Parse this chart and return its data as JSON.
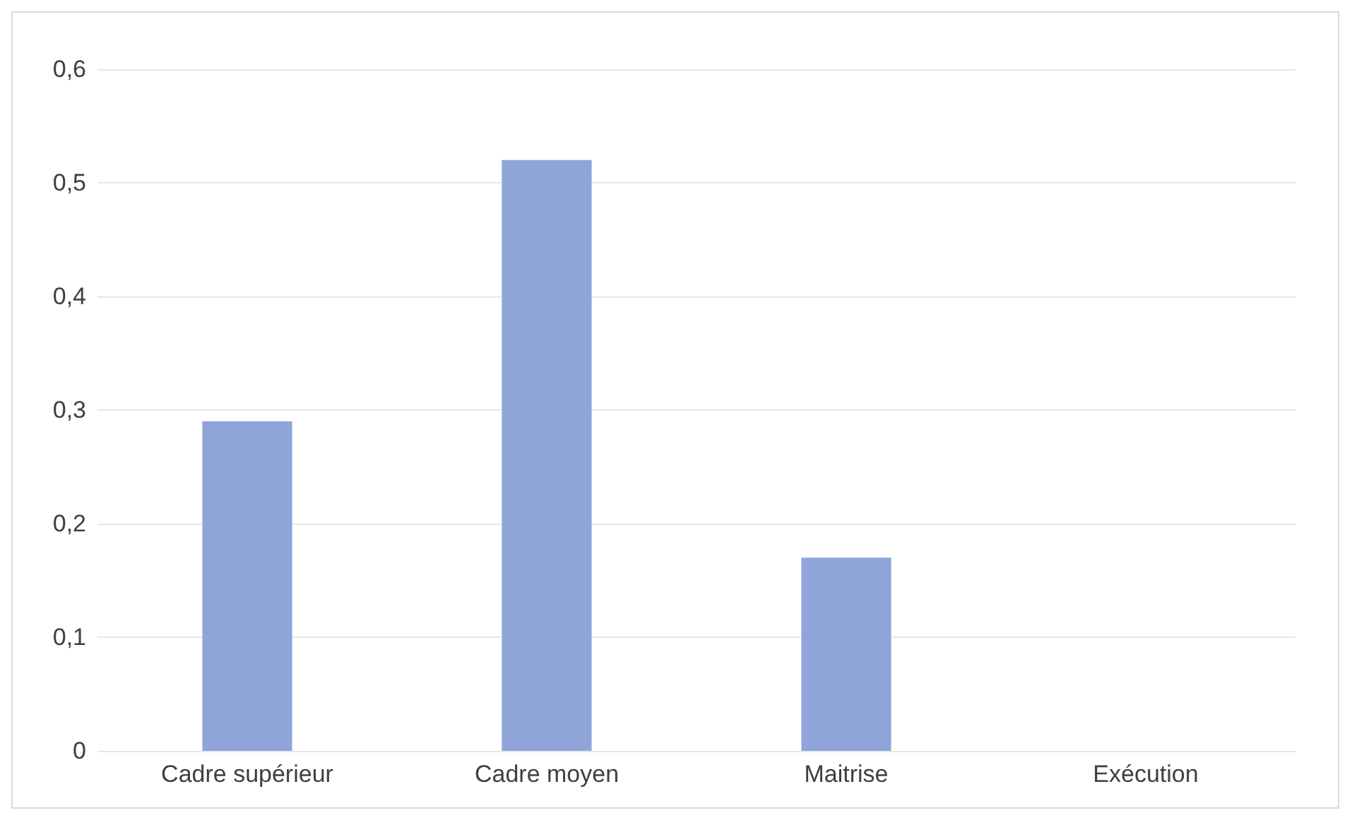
{
  "chart_data": {
    "type": "bar",
    "categories": [
      "Cadre supérieur",
      "Cadre moyen",
      "Maitrise",
      "Exécution"
    ],
    "values": [
      0.29,
      0.52,
      0.17,
      0
    ],
    "color": "#8fa5da",
    "ylim": [
      0,
      0.6
    ],
    "yticks": [
      0,
      {
        "value": 0.1,
        "label": "0,1"
      },
      {
        "value": 0.2,
        "label": "0,2"
      },
      {
        "value": 0.3,
        "label": "0,3"
      },
      {
        "value": 0.4,
        "label": "0,4"
      },
      {
        "value": 0.5,
        "label": "0,5"
      },
      {
        "value": 0.6,
        "label": "0,6"
      }
    ],
    "grid": "y"
  }
}
